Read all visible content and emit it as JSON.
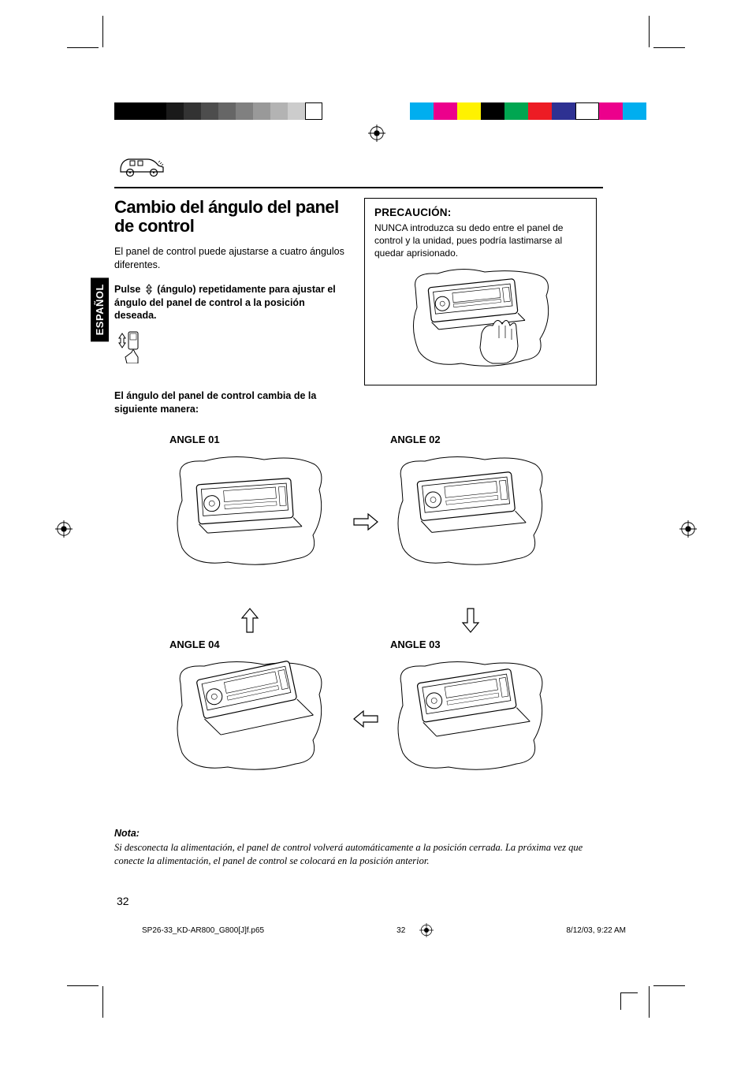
{
  "langTab": "ESPAÑOL",
  "title": "Cambio del ángulo del panel de control",
  "intro": "El panel de control puede ajustarse a cuatro ángulos diferentes.",
  "instruction_pre": "Pulse ",
  "instruction_mid": " (ángulo) repetidamente para ajustar el ángulo del panel de control a la posición deseada.",
  "angleChangeText": "El ángulo del panel de control cambia de la siguiente manera:",
  "caution": {
    "title": "PRECAUCIÓN:",
    "text": "NUNCA introduzca su dedo entre el panel de control y la unidad, pues podría lastimarse al quedar aprisionado."
  },
  "angles": {
    "a01": "ANGLE 01",
    "a02": "ANGLE 02",
    "a03": "ANGLE 03",
    "a04": "ANGLE 04"
  },
  "note": {
    "title": "Nota:",
    "text": "Si desconecta la alimentación, el panel de control volverá automáticamente a la posición cerrada. La próxima vez que conecte la alimentación, el panel de control se colocará en la posición anterior."
  },
  "pageNum": "32",
  "footer": {
    "file": "SP26-33_KD-AR800_G800[J]f.p65",
    "page": "32",
    "date": "8/12/03, 9:22 AM"
  },
  "grayBar": [
    "#000000",
    "#000000",
    "#000000",
    "#1a1a1a",
    "#333333",
    "#4d4d4d",
    "#666666",
    "#808080",
    "#999999",
    "#b3b3b3",
    "#cccccc",
    "#ffffff"
  ],
  "colorBar": [
    "#00aeef",
    "#ec008c",
    "#fff200",
    "#000000",
    "#00a651",
    "#ed1c24",
    "#2e3192",
    "#ffffff",
    "#ec008c",
    "#00aeef"
  ]
}
